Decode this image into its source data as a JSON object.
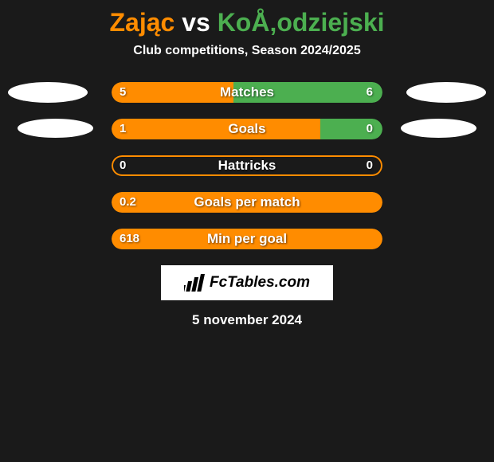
{
  "title": {
    "player1": "Zając",
    "vs": "vs",
    "player2": "KoÅ‚odziejski"
  },
  "subtitle": "Club competitions, Season 2024/2025",
  "stats": [
    {
      "label": "Matches",
      "left_value": "5",
      "right_value": "6",
      "left_pct": 45,
      "right_pct": 55,
      "mode": "split",
      "show_left_ellipse": true,
      "show_right_ellipse": true,
      "ellipse_class_left": "ellipse-tl",
      "ellipse_class_right": "ellipse-tr"
    },
    {
      "label": "Goals",
      "left_value": "1",
      "right_value": "0",
      "left_pct": 77,
      "right_pct": 23,
      "mode": "split",
      "show_left_ellipse": true,
      "show_right_ellipse": true,
      "ellipse_class_left": "ellipse-bl",
      "ellipse_class_right": "ellipse-br"
    },
    {
      "label": "Hattricks",
      "left_value": "0",
      "right_value": "0",
      "mode": "outline"
    },
    {
      "label": "Goals per match",
      "left_value": "0.2",
      "right_value": "",
      "mode": "full"
    },
    {
      "label": "Min per goal",
      "left_value": "618",
      "right_value": "",
      "mode": "full"
    }
  ],
  "logo": {
    "text": "FcTables.com"
  },
  "date": "5 november 2024",
  "colors": {
    "player1": "#ff8c00",
    "player2": "#4caf50",
    "background": "#1a1a1a",
    "text": "#ffffff"
  }
}
